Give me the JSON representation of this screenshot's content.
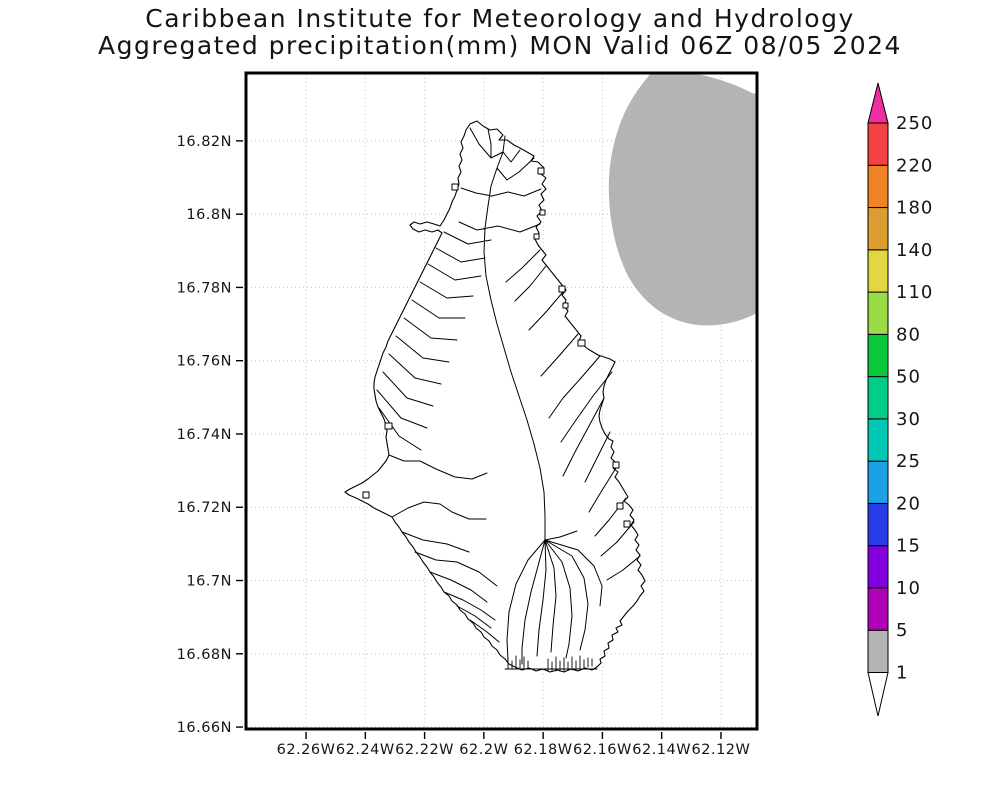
{
  "title": {
    "line1": "Caribbean Institute for Meteorology and Hydrology",
    "line2": "Aggregated precipitation(mm) MON Valid 06Z 08/05 2024"
  },
  "chart_data": {
    "type": "heatmap",
    "subtype": "geographic precipitation contour map with filled shading",
    "title": "Caribbean Institute for Meteorology and Hydrology",
    "subtitle": "Aggregated precipitation(mm) MON Valid 06Z 08/05 2024",
    "variable": "Aggregated precipitation (mm)",
    "region_code": "MON",
    "valid_time": "06Z 08/05 2024",
    "x_axis": {
      "unit": "degrees West",
      "range_w": [
        62.2806,
        62.1075
      ],
      "grid": "dotted",
      "ticks": [
        {
          "label": "62.26W",
          "value_w": 62.26
        },
        {
          "label": "62.24W",
          "value_w": 62.24
        },
        {
          "label": "62.22W",
          "value_w": 62.22
        },
        {
          "label": "62.2W",
          "value_w": 62.2
        },
        {
          "label": "62.18W",
          "value_w": 62.18
        },
        {
          "label": "62.16W",
          "value_w": 62.16
        },
        {
          "label": "62.14W",
          "value_w": 62.14
        },
        {
          "label": "62.12W",
          "value_w": 62.12
        }
      ]
    },
    "y_axis": {
      "unit": "degrees North",
      "range_n": [
        16.6592,
        16.8388
      ],
      "grid": "dotted",
      "ticks": [
        {
          "label": "16.82N",
          "value_n": 16.82
        },
        {
          "label": "16.8N",
          "value_n": 16.8
        },
        {
          "label": "16.78N",
          "value_n": 16.78
        },
        {
          "label": "16.76N",
          "value_n": 16.76
        },
        {
          "label": "16.74N",
          "value_n": 16.74
        },
        {
          "label": "16.72N",
          "value_n": 16.72
        },
        {
          "label": "16.7N",
          "value_n": 16.7
        },
        {
          "label": "16.68N",
          "value_n": 16.68
        },
        {
          "label": "16.66N",
          "value_n": 16.66
        }
      ]
    },
    "colorbar": {
      "position": "right",
      "levels_mm": [
        1,
        5,
        10,
        15,
        20,
        25,
        30,
        50,
        80,
        110,
        140,
        180,
        220,
        250
      ],
      "segment_colors": [
        "#b4b4b4",
        "#b000b8",
        "#8200dc",
        "#283ce6",
        "#1ea0e6",
        "#00c8b4",
        "#00cd87",
        "#0ac83c",
        "#9bdc46",
        "#e1d741",
        "#dc9e32",
        "#f08228",
        "#f54141"
      ],
      "below_min_color": "#ffffff",
      "above_max_color": "#ef2f9f"
    },
    "features": [
      {
        "name": "island-watersheds",
        "description": "Montserrat island drawn as many small watershed polygons in thin black outline; land is unshaded (precipitation < 1 mm)"
      },
      {
        "name": "offshore-precip-area",
        "value_range_mm": [
          1,
          5
        ],
        "color": "#b4b4b4",
        "description": "Gray 1-5 mm shaded precipitation area offshore northeast of the island, clipped by the top and right map frame edges"
      }
    ],
    "grid_color": "#c3c3c3",
    "frame_color": "#000000"
  }
}
